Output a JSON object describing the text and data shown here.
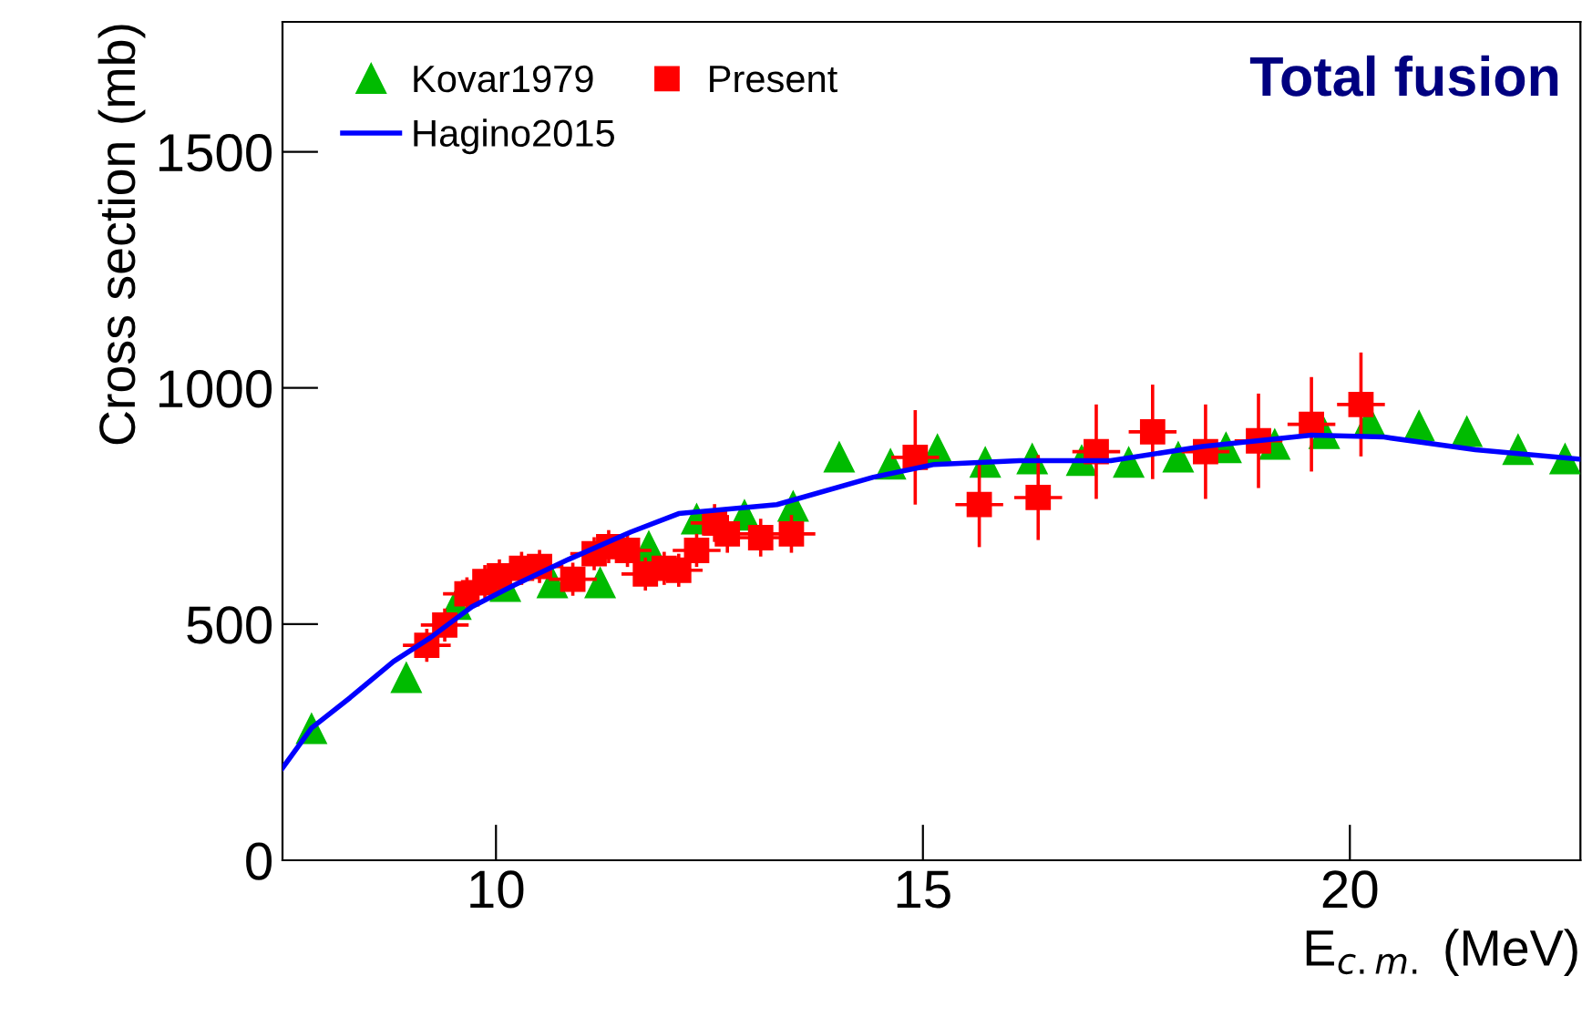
{
  "chart_data": {
    "type": "scatter",
    "title": "Total fusion",
    "xlabel": "E$_{c.m.}$ (MeV)",
    "ylabel": "Cross section (mb)",
    "xlim": [
      7.5,
      22.7
    ],
    "ylim": [
      0,
      1775
    ],
    "xticks": [
      10,
      15,
      20
    ],
    "yticks": [
      0,
      500,
      1000,
      1500
    ],
    "grid": false,
    "legend": "top left",
    "series": [
      {
        "name": "Kovar1979",
        "marker": "triangle",
        "color": "#00bb00",
        "x": [
          7.84,
          8.95,
          9.53,
          10.11,
          10.66,
          11.22,
          11.79,
          12.35,
          12.91,
          13.48,
          14.02,
          14.62,
          15.17,
          15.73,
          16.28,
          16.86,
          17.41,
          17.99,
          18.55,
          19.12,
          19.7,
          20.23,
          20.81,
          21.37,
          21.97,
          22.52
        ],
        "values": [
          278,
          386,
          541,
          579,
          587,
          587,
          664,
          722,
          730,
          749,
          853,
          838,
          869,
          842,
          849,
          846,
          842,
          853,
          873,
          880,
          903,
          930,
          919,
          907,
          869,
          849
        ]
      },
      {
        "name": "Present",
        "marker": "square",
        "color": "#ff0000",
        "x": [
          9.19,
          9.4,
          9.66,
          9.87,
          10.04,
          10.3,
          10.51,
          10.9,
          11.15,
          11.32,
          11.54,
          11.75,
          11.97,
          12.14,
          12.35,
          12.56,
          12.71,
          13.1,
          13.46,
          14.91,
          15.66,
          16.35,
          17.03,
          17.69,
          18.31,
          18.93,
          19.55,
          20.13
        ],
        "values": [
          455,
          498,
          564,
          590,
          602,
          618,
          622,
          595,
          649,
          664,
          656,
          606,
          618,
          614,
          656,
          714,
          691,
          683,
          691,
          853,
          753,
          768,
          865,
          907,
          865,
          888,
          923,
          965
        ],
        "errors": [
          35,
          35,
          35,
          35,
          35,
          35,
          35,
          35,
          35,
          35,
          35,
          35,
          35,
          35,
          35,
          40,
          40,
          40,
          40,
          100,
          90,
          90,
          100,
          100,
          100,
          100,
          100,
          110
        ],
        "xerrors": [
          0.28,
          0.28,
          0.28,
          0.28,
          0.28,
          0.28,
          0.28,
          0.28,
          0.28,
          0.28,
          0.28,
          0.28,
          0.28,
          0.28,
          0.28,
          0.28,
          0.28,
          0.28,
          0.28,
          0.28,
          0.28,
          0.28,
          0.28,
          0.28,
          0.28,
          0.28,
          0.28,
          0.28
        ]
      },
      {
        "name": "Hagino2015",
        "type": "line",
        "marker": "none",
        "color": "#0000ff",
        "x": [
          7.5,
          7.84,
          8.29,
          8.8,
          9.23,
          9.72,
          10.21,
          10.85,
          11.58,
          12.14,
          13.29,
          14.42,
          15.13,
          16.13,
          17.2,
          18.27,
          19.55,
          20.4,
          21.47,
          22.7
        ],
        "values": [
          195,
          280,
          344,
          421,
          471,
          537,
          582,
          637,
          695,
          734,
          753,
          811,
          838,
          846,
          846,
          876,
          900,
          896,
          869,
          849
        ]
      }
    ]
  }
}
